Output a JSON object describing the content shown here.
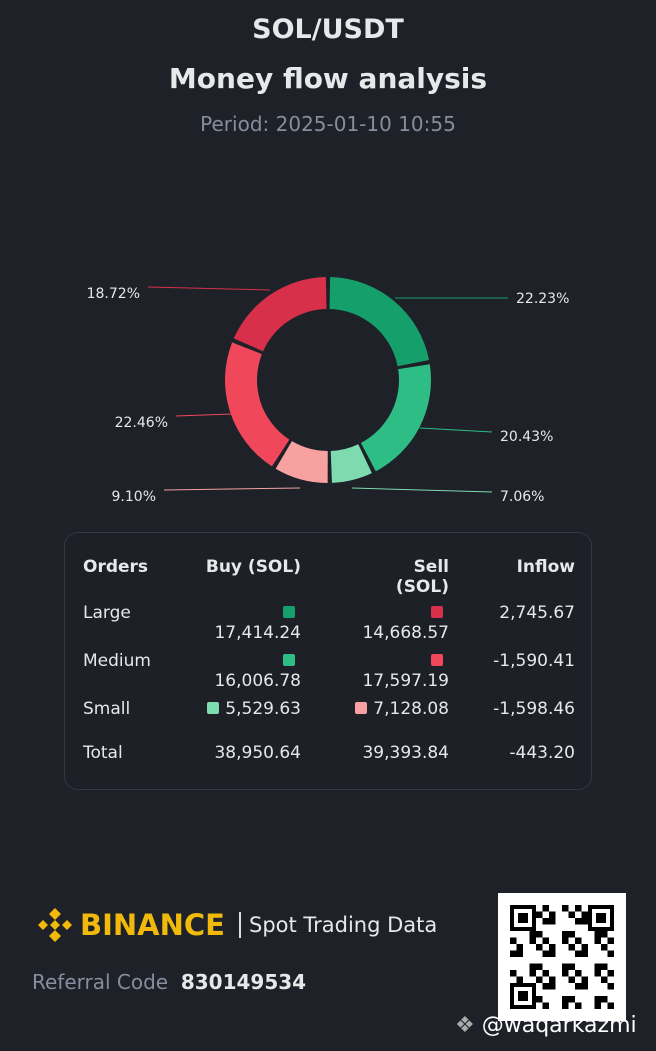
{
  "header": {
    "pair": "SOL/USDT",
    "title": "Money flow analysis",
    "period": "Period: 2025-01-10 10:55"
  },
  "chart_data": {
    "type": "pie",
    "donut": true,
    "slices": [
      {
        "category": "Large Buy",
        "value": 22.23,
        "label": "22.23%",
        "color": "#15a06b"
      },
      {
        "category": "Medium Buy",
        "value": 20.43,
        "label": "20.43%",
        "color": "#2ebd85"
      },
      {
        "category": "Small Buy",
        "value": 7.06,
        "label": "7.06%",
        "color": "#7edbb0"
      },
      {
        "category": "Small Sell",
        "value": 9.1,
        "label": "9.10%",
        "color": "#f7a1a1"
      },
      {
        "category": "Medium Sell",
        "value": 22.46,
        "label": "22.46%",
        "color": "#f0475a"
      },
      {
        "category": "Large Sell",
        "value": 18.72,
        "label": "18.72%",
        "color": "#d8304a"
      }
    ]
  },
  "table": {
    "headers": [
      "Orders",
      "Buy (SOL)",
      "Sell (SOL)",
      "Inflow"
    ],
    "rows": [
      {
        "name": "Large",
        "buy": "17,414.24",
        "sell": "14,668.57",
        "inflow": "2,745.67",
        "buy_color": "#15a06b",
        "sell_color": "#d8304a"
      },
      {
        "name": "Medium",
        "buy": "16,006.78",
        "sell": "17,597.19",
        "inflow": "-1,590.41",
        "buy_color": "#2ebd85",
        "sell_color": "#f0475a"
      },
      {
        "name": "Small",
        "buy": "5,529.63",
        "sell": "7,128.08",
        "inflow": "-1,598.46",
        "buy_color": "#7edbb0",
        "sell_color": "#f7a1a1"
      }
    ],
    "total": {
      "name": "Total",
      "buy": "38,950.64",
      "sell": "39,393.84",
      "inflow": "-443.20"
    }
  },
  "footer": {
    "brand": "BINANCE",
    "subtitle": "Spot Trading Data",
    "referral_label": "Referral Code",
    "referral_code": "830149534",
    "watermark": "@waqarkazmi"
  }
}
